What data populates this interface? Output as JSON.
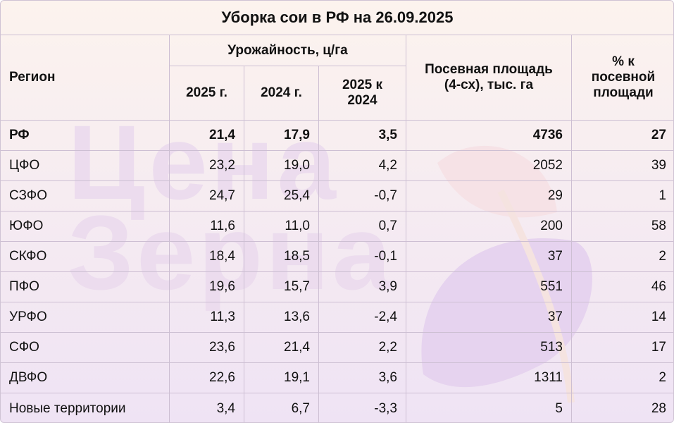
{
  "title": "Уборка сои в РФ на 26.09.2025",
  "watermark": "Цена Зерна",
  "headers": {
    "region": "Регион",
    "yield_group": "Урожайность, ц/га",
    "y2025": "2025 г.",
    "y2024": "2024 г.",
    "diff": "2025 к 2024",
    "area": "Посевная площадь (4-сх), тыс. га",
    "pct": "% к посевной площади"
  },
  "rows": [
    [
      "РФ",
      "21,4",
      "17,9",
      "3,5",
      "4736",
      "27"
    ],
    [
      "ЦФО",
      "23,2",
      "19,0",
      "4,2",
      "2052",
      "39"
    ],
    [
      "СЗФО",
      "24,7",
      "25,4",
      "-0,7",
      "29",
      "1"
    ],
    [
      "ЮФО",
      "11,6",
      "11,0",
      "0,7",
      "200",
      "58"
    ],
    [
      "СКФО",
      "18,4",
      "18,5",
      "-0,1",
      "37",
      "2"
    ],
    [
      "ПФО",
      "19,6",
      "15,7",
      "3,9",
      "551",
      "46"
    ],
    [
      "УРФО",
      "11,3",
      "13,6",
      "-2,4",
      "37",
      "14"
    ],
    [
      "СФО",
      "23,6",
      "21,4",
      "2,2",
      "513",
      "17"
    ],
    [
      "ДВФО",
      "22,6",
      "19,1",
      "3,6",
      "1311",
      "2"
    ],
    [
      "Новые территории",
      "3,4",
      "6,7",
      "-3,3",
      "5",
      "28"
    ]
  ]
}
